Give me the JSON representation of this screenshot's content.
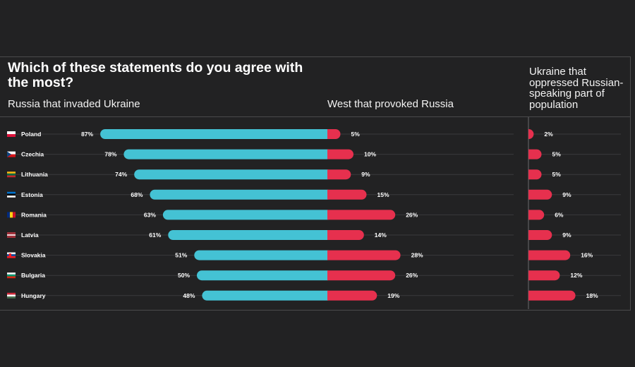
{
  "title": "Which of these statements do you agree with the most?",
  "column_headers": {
    "invaded": "Russia that invaded Ukraine",
    "provoked": "West that provoked Russia",
    "oppressed": "Ukraine that oppressed Russian-speaking part of population"
  },
  "colors": {
    "background": "#222223",
    "invaded_bar": "#44c2d4",
    "provoked_bar": "#e6304e",
    "oppressed_bar": "#e6304e",
    "gridline": "#3a3a3c"
  },
  "chart_data": {
    "type": "bar",
    "orientation": "horizontal",
    "value_suffix": "%",
    "categories": [
      "Poland",
      "Czechia",
      "Lithuania",
      "Estonia",
      "Romania",
      "Latvia",
      "Slovakia",
      "Bulgaria",
      "Hungary"
    ],
    "flag_icons": [
      "poland-flag-icon",
      "czechia-flag-icon",
      "lithuania-flag-icon",
      "estonia-flag-icon",
      "romania-flag-icon",
      "latvia-flag-icon",
      "slovakia-flag-icon",
      "bulgaria-flag-icon",
      "hungary-flag-icon"
    ],
    "series": [
      {
        "name": "Russia that invaded Ukraine",
        "values": [
          87,
          78,
          74,
          68,
          63,
          61,
          51,
          50,
          48
        ]
      },
      {
        "name": "West that provoked Russia",
        "values": [
          5,
          10,
          9,
          15,
          26,
          14,
          28,
          26,
          19
        ]
      },
      {
        "name": "Ukraine that oppressed Russian-speaking part of population",
        "values": [
          2,
          5,
          5,
          9,
          6,
          9,
          16,
          12,
          18
        ]
      }
    ]
  }
}
